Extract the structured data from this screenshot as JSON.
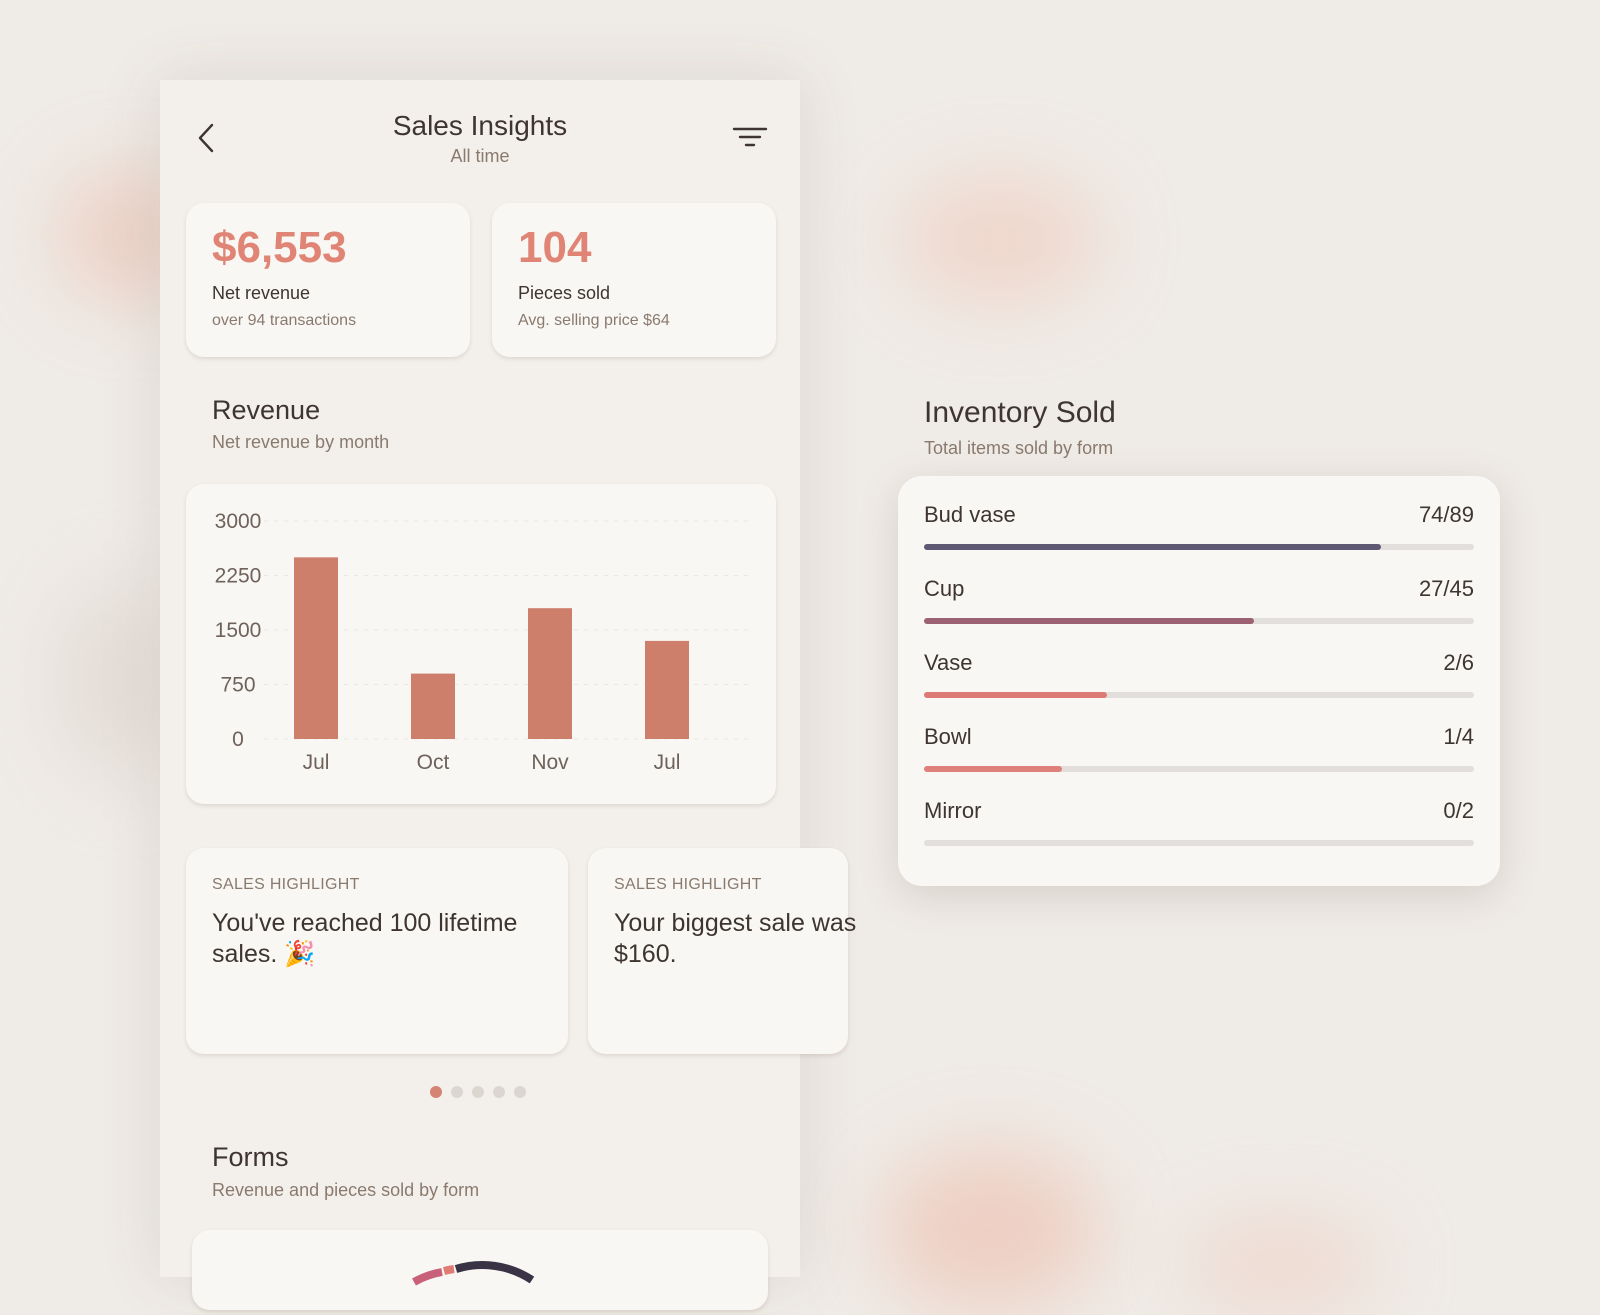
{
  "header": {
    "title": "Sales Insights",
    "subtitle": "All time"
  },
  "stats": [
    {
      "value": "$6,553",
      "label": "Net revenue",
      "sub": "over 94 transactions"
    },
    {
      "value": "104",
      "label": "Pieces sold",
      "sub": "Avg. selling price $64"
    }
  ],
  "revenue": {
    "title": "Revenue",
    "subtitle": "Net revenue by month"
  },
  "chart_data": {
    "type": "bar",
    "categories": [
      "Jul",
      "Oct",
      "Nov",
      "Jul"
    ],
    "values": [
      2500,
      900,
      1800,
      1350
    ],
    "yticks": [
      "3000",
      "2250",
      "1500",
      "750",
      "0"
    ],
    "ylim": [
      0,
      3000
    ],
    "title": "",
    "xlabel": "",
    "ylabel": "",
    "grid": true,
    "bar_color": "#cd7f6b"
  },
  "highlights": [
    {
      "eyebrow": "SALES HIGHLIGHT",
      "text": "You've reached 100 lifetime sales. 🎉"
    },
    {
      "eyebrow": "SALES HIGHLIGHT",
      "text": "Your biggest sale was $160."
    }
  ],
  "carousel": {
    "count": 5,
    "active": 0
  },
  "forms": {
    "title": "Forms",
    "subtitle": "Revenue and pieces sold by form"
  },
  "inventory": {
    "title": "Inventory Sold",
    "subtitle": "Total items sold by form",
    "items": [
      {
        "label": "Bud vase",
        "count": "74/89",
        "sold": 74,
        "total": 89,
        "color": "#5f5873"
      },
      {
        "label": "Cup",
        "count": "27/45",
        "sold": 27,
        "total": 45,
        "color": "#9c6173"
      },
      {
        "label": "Vase",
        "count": "2/6",
        "sold": 2,
        "total": 6,
        "color": "#de7a74"
      },
      {
        "label": "Bowl",
        "count": "1/4",
        "sold": 1,
        "total": 4,
        "color": "#e0807a"
      },
      {
        "label": "Mirror",
        "count": "0/2",
        "sold": 0,
        "total": 2,
        "color": "#e3837c"
      }
    ]
  },
  "colors": {
    "accent": "#e08576",
    "background": "#efebe6",
    "card": "#f9f7f4"
  },
  "icons": {
    "back": "chevron-left-icon",
    "filter": "filter-icon"
  }
}
